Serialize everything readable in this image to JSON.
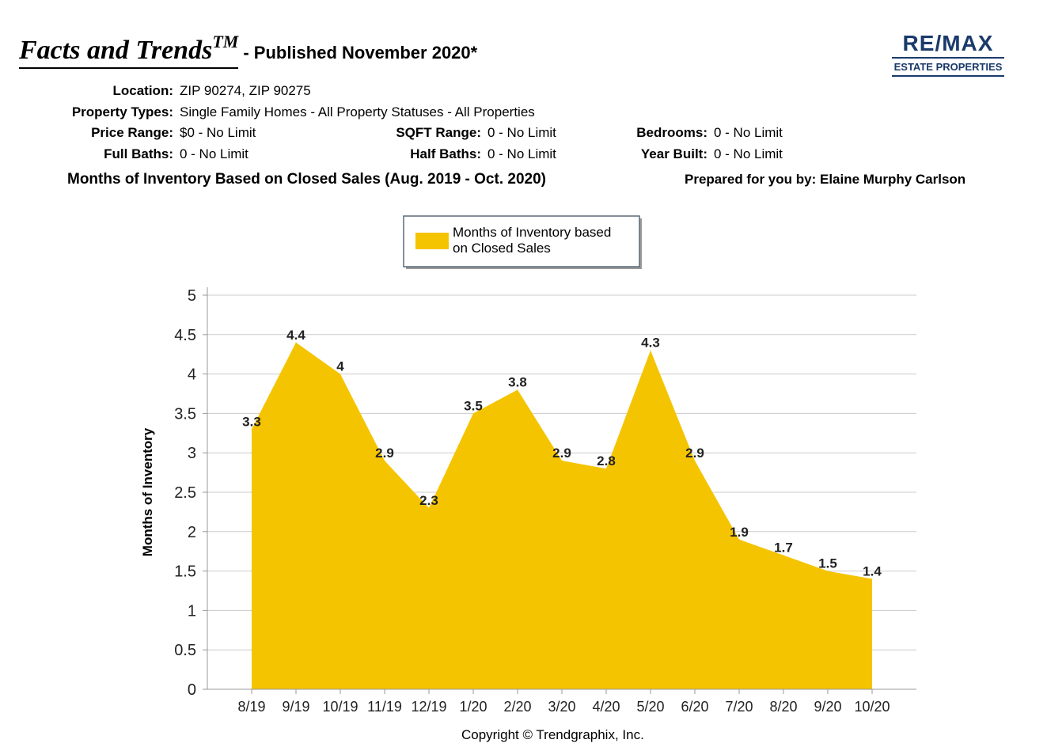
{
  "header": {
    "brand": "Facts and Trends",
    "brand_tm": "TM",
    "published": "- Published November 2020*"
  },
  "logo": {
    "main": "RE/MAX",
    "sub": "ESTATE PROPERTIES"
  },
  "info": {
    "location_label": "Location:",
    "location": "ZIP 90274, ZIP 90275",
    "types_label": "Property Types:",
    "types": "Single Family Homes - All Property Statuses - All Properties",
    "price_label": "Price Range:",
    "price": "$0 - No Limit",
    "sqft_label": "SQFT Range:",
    "sqft": "0 - No Limit",
    "beds_label": "Bedrooms:",
    "beds": "0 - No Limit",
    "fullbaths_label": "Full Baths:",
    "fullbaths": "0 - No Limit",
    "halfbaths_label": "Half Baths:",
    "halfbaths": "0 - No Limit",
    "yearbuilt_label": "Year Built:",
    "yearbuilt": "0 - No Limit"
  },
  "subtitle": "Months of Inventory Based on Closed Sales (Aug. 2019 - Oct. 2020)",
  "prepared": "Prepared for you by: Elaine Murphy Carlson",
  "copyright": "Copyright © Trendgraphix, Inc.",
  "colors": {
    "area": "#F5C400",
    "grid": "#cccccc",
    "logo": "#1a3a6b"
  },
  "chart_data": {
    "type": "area",
    "categories": [
      "8/19",
      "9/19",
      "10/19",
      "11/19",
      "12/19",
      "1/20",
      "2/20",
      "3/20",
      "4/20",
      "5/20",
      "6/20",
      "7/20",
      "8/20",
      "9/20",
      "10/20"
    ],
    "series": [
      {
        "name": "Months of Inventory based on Closed Sales",
        "values": [
          3.3,
          4.4,
          4,
          2.9,
          2.3,
          3.5,
          3.8,
          2.9,
          2.8,
          4.3,
          2.9,
          1.9,
          1.7,
          1.5,
          1.4
        ]
      }
    ],
    "data_labels": [
      "3.3",
      "4.4",
      "4",
      "2.9",
      "2.3",
      "3.5",
      "3.8",
      "2.9",
      "2.8",
      "4.3",
      "2.9",
      "1.9",
      "1.7",
      "1.5",
      "1.4"
    ],
    "yticks": [
      "0",
      "0.5",
      "1",
      "1.5",
      "2",
      "2.5",
      "3",
      "3.5",
      "4",
      "4.5",
      "5"
    ],
    "ylabel": "Months of Inventory",
    "ylim": [
      0,
      5
    ],
    "grid": true,
    "legend": {
      "position": "top-center",
      "line1": "Months of Inventory based",
      "line2": "on Closed Sales"
    }
  }
}
